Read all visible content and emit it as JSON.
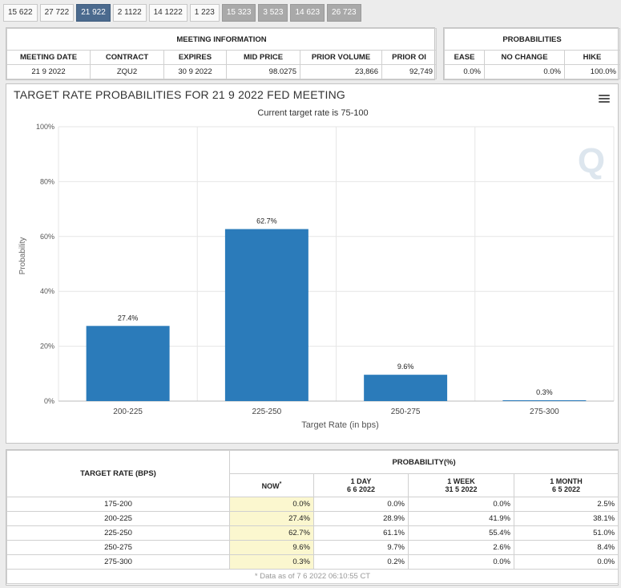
{
  "tabs": [
    {
      "label": "15 622",
      "state": "normal"
    },
    {
      "label": "27 722",
      "state": "normal"
    },
    {
      "label": "21 922",
      "state": "active"
    },
    {
      "label": "2 1122",
      "state": "normal"
    },
    {
      "label": "14 1222",
      "state": "normal"
    },
    {
      "label": "1 223",
      "state": "normal"
    },
    {
      "label": "15 323",
      "state": "muted"
    },
    {
      "label": "3 523",
      "state": "muted"
    },
    {
      "label": "14 623",
      "state": "muted"
    },
    {
      "label": "26 723",
      "state": "muted"
    }
  ],
  "meeting_info": {
    "title": "MEETING INFORMATION",
    "headers": [
      "MEETING DATE",
      "CONTRACT",
      "EXPIRES",
      "MID PRICE",
      "PRIOR VOLUME",
      "PRIOR OI"
    ],
    "values": [
      "21 9 2022",
      "ZQU2",
      "30 9 2022",
      "98.0275",
      "23,866",
      "92,749"
    ]
  },
  "probabilities": {
    "title": "PROBABILITIES",
    "headers": [
      "EASE",
      "NO CHANGE",
      "HIKE"
    ],
    "values": [
      "0.0%",
      "0.0%",
      "100.0%"
    ]
  },
  "chart": {
    "menu_icon": "hamburger-menu-icon",
    "watermark": "Q"
  },
  "chart_data": {
    "type": "bar",
    "title": "TARGET RATE PROBABILITIES FOR 21 9 2022 FED MEETING",
    "subtitle": "Current target rate is 75-100",
    "xlabel": "Target Rate (in bps)",
    "ylabel": "Probability",
    "categories": [
      "200-225",
      "225-250",
      "250-275",
      "275-300"
    ],
    "values": [
      27.4,
      62.7,
      9.6,
      0.3
    ],
    "data_labels": [
      "27.4%",
      "62.7%",
      "9.6%",
      "0.3%"
    ],
    "ylim": [
      0,
      100
    ],
    "yticks": [
      0,
      20,
      40,
      60,
      80,
      100
    ],
    "ytick_labels": [
      "0%",
      "20%",
      "40%",
      "60%",
      "80%",
      "100%"
    ],
    "bar_color": "#2b7bba",
    "grid": true
  },
  "history": {
    "col_target": "TARGET RATE (BPS)",
    "col_prob": "PROBABILITY(%)",
    "sub_headers": [
      {
        "line1": "NOW",
        "line2": "",
        "sup": "*"
      },
      {
        "line1": "1 DAY",
        "line2": "6 6 2022",
        "sup": ""
      },
      {
        "line1": "1 WEEK",
        "line2": "31 5 2022",
        "sup": ""
      },
      {
        "line1": "1 MONTH",
        "line2": "6 5 2022",
        "sup": ""
      }
    ],
    "rows": [
      {
        "rate": "175-200",
        "now": "0.0%",
        "day": "0.0%",
        "week": "0.0%",
        "month": "2.5%"
      },
      {
        "rate": "200-225",
        "now": "27.4%",
        "day": "28.9%",
        "week": "41.9%",
        "month": "38.1%"
      },
      {
        "rate": "225-250",
        "now": "62.7%",
        "day": "61.1%",
        "week": "55.4%",
        "month": "51.0%"
      },
      {
        "rate": "250-275",
        "now": "9.6%",
        "day": "9.7%",
        "week": "2.6%",
        "month": "8.4%"
      },
      {
        "rate": "275-300",
        "now": "0.3%",
        "day": "0.2%",
        "week": "0.0%",
        "month": "0.0%"
      }
    ],
    "footnote": "* Data as of 7 6 2022 06:10:55 CT"
  }
}
